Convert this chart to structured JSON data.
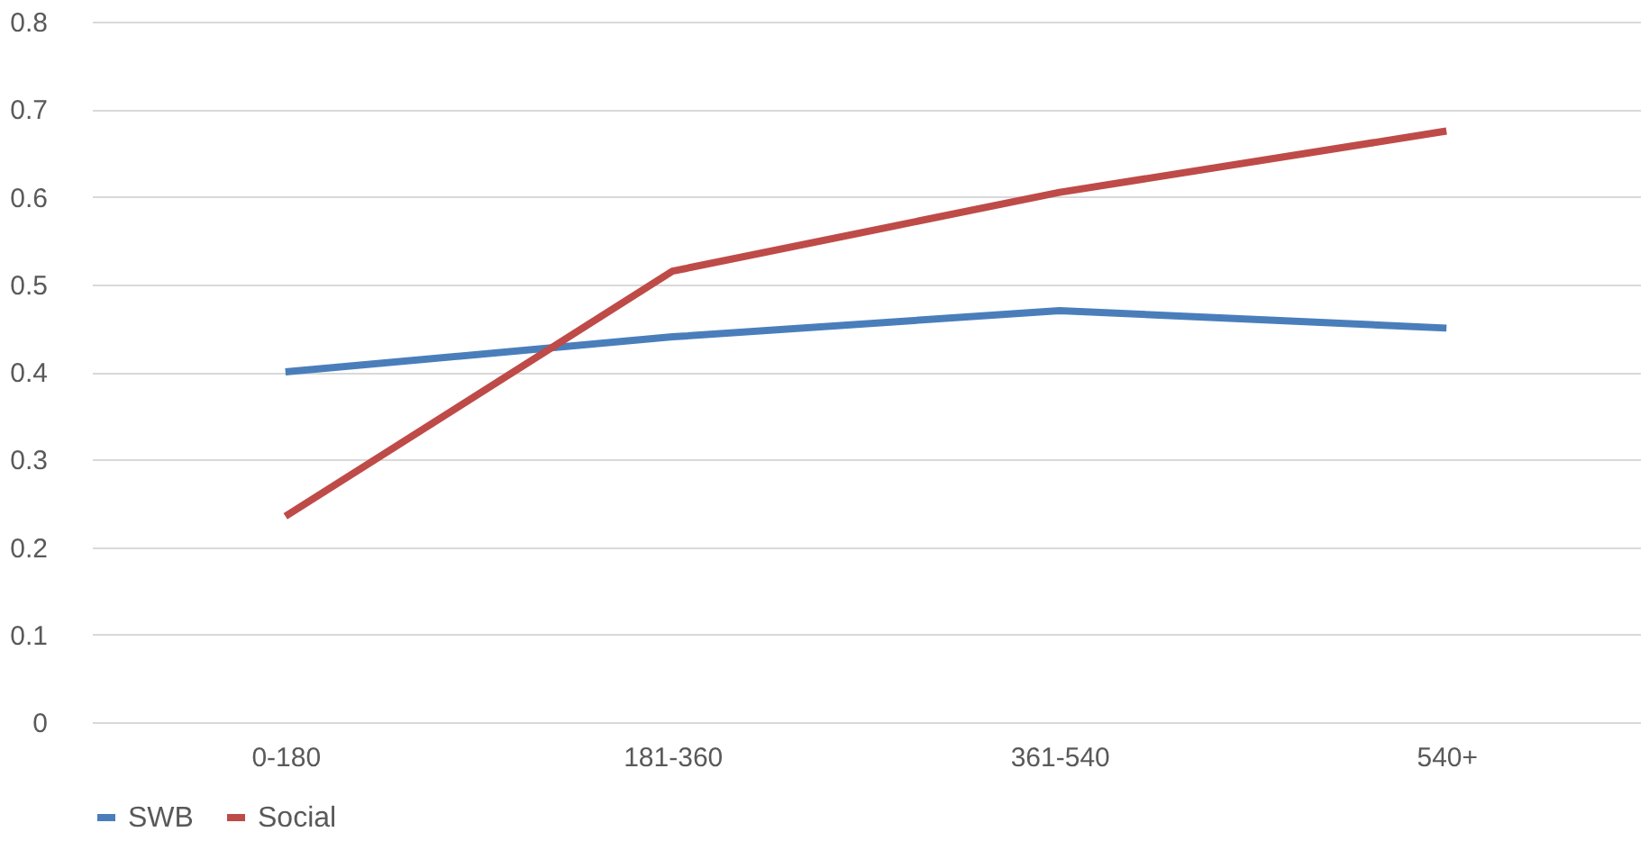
{
  "chart_data": {
    "type": "line",
    "categories": [
      "0-180",
      "181-360",
      "361-540",
      "540+"
    ],
    "series": [
      {
        "name": "SWB",
        "color": "#4a7ebb",
        "values": [
          0.4,
          0.44,
          0.47,
          0.45
        ]
      },
      {
        "name": "Social",
        "color": "#be4b48",
        "values": [
          0.235,
          0.515,
          0.605,
          0.675
        ]
      }
    ],
    "ylim": [
      0,
      0.8
    ],
    "yticks": [
      0,
      0.1,
      0.2,
      0.3,
      0.4,
      0.5,
      0.6,
      0.7,
      0.8
    ],
    "grid": "y",
    "legend": "bottom",
    "marker": "none",
    "line_style": "solid"
  }
}
